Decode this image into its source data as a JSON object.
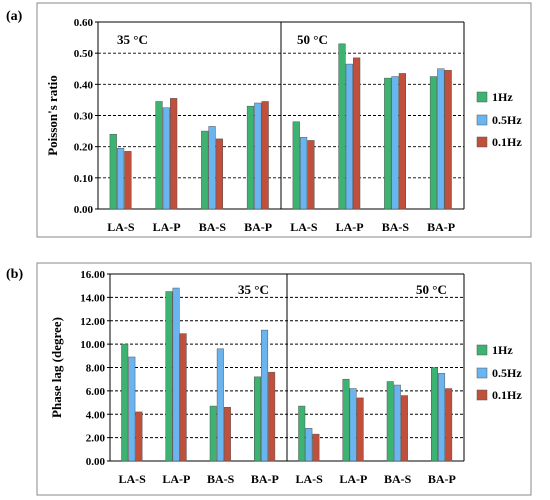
{
  "colors": {
    "1Hz": "#3cb371",
    "0.5Hz": "#6ab4f0",
    "0.1Hz": "#c0503c"
  },
  "chart_data": [
    {
      "type": "bar",
      "panel_label": "(a)",
      "ylabel": "Poisson's ratio",
      "ylim": [
        0,
        0.6
      ],
      "yticks": [
        "0.00",
        "0.10",
        "0.20",
        "0.30",
        "0.40",
        "0.50",
        "0.60"
      ],
      "grid": "dashed horizontal",
      "legend_position": "right",
      "group_labels": [
        "35 °C",
        "50 °C"
      ],
      "categories": [
        "LA-S",
        "LA-P",
        "BA-S",
        "BA-P",
        "LA-S",
        "LA-P",
        "BA-S",
        "BA-P"
      ],
      "series": [
        {
          "name": "1Hz",
          "values": [
            0.24,
            0.345,
            0.25,
            0.33,
            0.28,
            0.53,
            0.42,
            0.425
          ]
        },
        {
          "name": "0.5Hz",
          "values": [
            0.195,
            0.325,
            0.265,
            0.34,
            0.23,
            0.465,
            0.425,
            0.45
          ]
        },
        {
          "name": "0.1Hz",
          "values": [
            0.185,
            0.355,
            0.225,
            0.345,
            0.22,
            0.485,
            0.435,
            0.445
          ]
        }
      ]
    },
    {
      "type": "bar",
      "panel_label": "(b)",
      "ylabel": "Phase lag (degree)",
      "ylim": [
        0,
        16
      ],
      "yticks": [
        "0.00",
        "2.00",
        "4.00",
        "6.00",
        "8.00",
        "10.00",
        "12.00",
        "14.00",
        "16.00"
      ],
      "grid": "dashed horizontal",
      "legend_position": "right",
      "group_labels": [
        "35 °C",
        "50 °C"
      ],
      "categories": [
        "LA-S",
        "LA-P",
        "BA-S",
        "BA-P",
        "LA-S",
        "LA-P",
        "BA-S",
        "BA-P"
      ],
      "series": [
        {
          "name": "1Hz",
          "values": [
            10.0,
            14.5,
            4.7,
            7.2,
            4.7,
            7.0,
            6.8,
            8.0
          ]
        },
        {
          "name": "0.5Hz",
          "values": [
            8.9,
            14.8,
            9.6,
            11.2,
            2.8,
            6.2,
            6.5,
            7.5
          ]
        },
        {
          "name": "0.1Hz",
          "values": [
            4.2,
            10.9,
            4.6,
            7.6,
            2.3,
            5.4,
            5.6,
            6.2
          ]
        }
      ]
    }
  ]
}
